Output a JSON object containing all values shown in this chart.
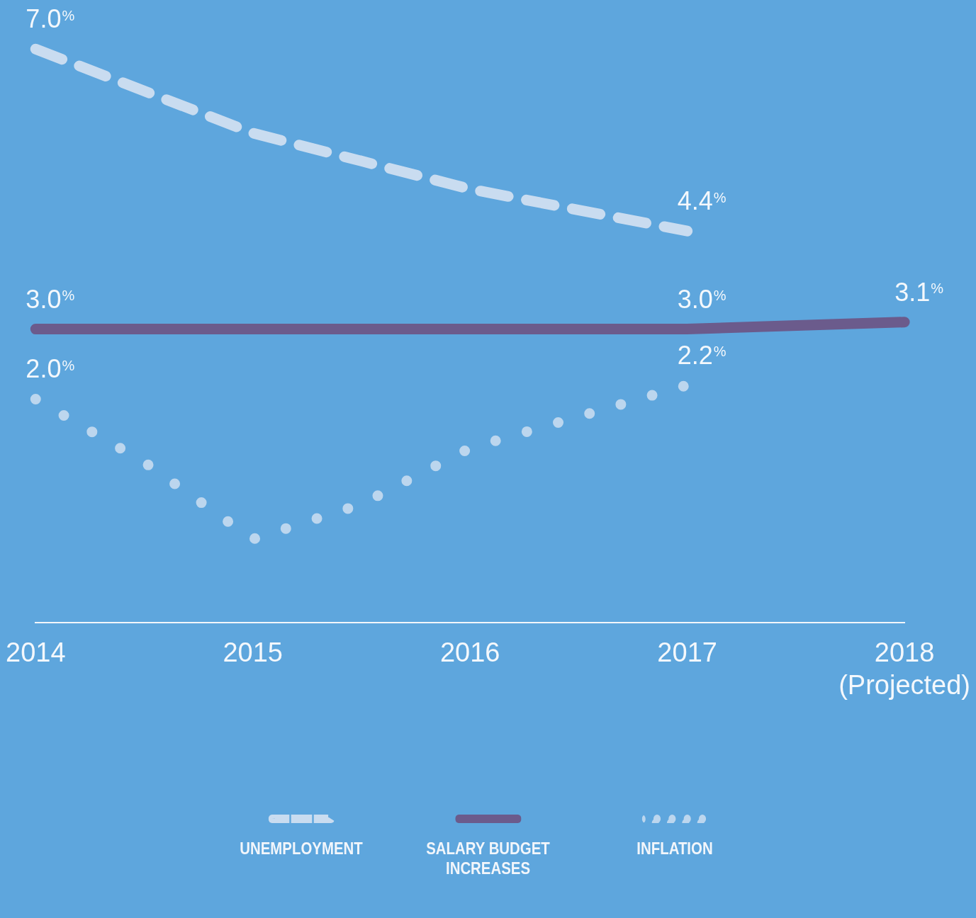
{
  "chart_data": {
    "type": "line",
    "xlim": [
      2014,
      2018
    ],
    "xticks": [
      2014,
      2015,
      2016,
      2017,
      {
        "value": 2018,
        "label": "2018\n(Projected)"
      }
    ],
    "tick_labels": "x",
    "grid": false,
    "legend": "bottom",
    "series": [
      {
        "name": "UNEMPLOYMENT",
        "color": "#c9dcf0",
        "line_style": "dashed",
        "x": [
          2014,
          2015,
          2016,
          2017
        ],
        "values": [
          7.0,
          5.8,
          5.0,
          4.4
        ],
        "value_labels": [
          "7.0%",
          null,
          null,
          "4.4%"
        ]
      },
      {
        "name": "SALARY BUDGET INCREASES",
        "color": "#6b5b8c",
        "line_style": "solid",
        "x": [
          2014,
          2015,
          2016,
          2017,
          2018
        ],
        "values": [
          3.0,
          3.0,
          3.0,
          3.0,
          3.1
        ],
        "value_labels": [
          "3.0%",
          null,
          null,
          "3.0%",
          "3.1%"
        ]
      },
      {
        "name": "INFLATION",
        "color": "#bcd6ee",
        "line_style": "dotted",
        "x": [
          2014,
          2014.5,
          2015,
          2015.5,
          2016,
          2017
        ],
        "values": [
          2.0,
          1.1,
          0.0,
          0.5,
          1.3,
          2.2
        ],
        "value_labels": [
          "2.0%",
          null,
          null,
          null,
          null,
          "2.2%"
        ]
      }
    ]
  }
}
